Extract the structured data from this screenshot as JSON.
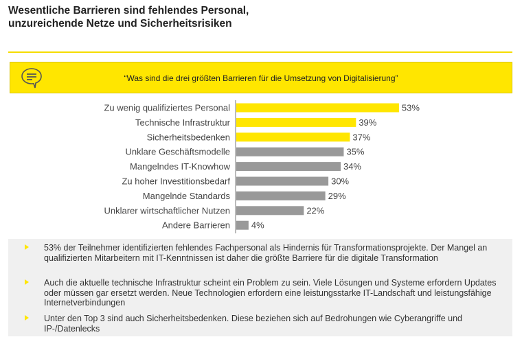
{
  "title_line1": "Wesentliche Barrieren sind fehlendes Personal,",
  "title_line2": "unzureichende Netze und Sicherheitsrisiken",
  "question": "“Was sind die drei größten Barrieren für die Umsetzung von Digitalisierung”",
  "colors": {
    "highlight": "#ffe600",
    "other": "#999999"
  },
  "chart_data": {
    "type": "bar",
    "orientation": "horizontal",
    "categories": [
      "Zu wenig qualifiziertes Personal",
      "Technische Infrastruktur",
      "Sicherheitsbedenken",
      "Unklare Geschäftsmodelle",
      "Mangelndes IT-Knowhow",
      "Zu hoher Investitionsbedarf",
      "Mangelnde Standards",
      "Unklarer wirtschaftlicher Nutzen",
      "Andere Barrieren"
    ],
    "values": [
      53,
      39,
      37,
      35,
      34,
      30,
      29,
      22,
      4
    ],
    "data_labels": [
      "53%",
      "39%",
      "37%",
      "35%",
      "34%",
      "30%",
      "29%",
      "22%",
      "4%"
    ],
    "highlighted": [
      true,
      true,
      true,
      false,
      false,
      false,
      false,
      false,
      false
    ],
    "unit": "%",
    "grid": false
  },
  "notes": [
    "53% der Teilnehmer identifizierten fehlendes Fachpersonal als Hindernis für Transformationsprojekte. Der Mangel an qualifizierten Mitarbeitern mit IT-Kenntnissen ist daher die größte Barriere für die digitale Transformation",
    "Auch die aktuelle technische Infrastruktur scheint ein Problem zu sein. Viele Lösungen und Systeme erfordern Updates oder müssen gar ersetzt werden. Neue Technologien erfordern eine leistungsstarke IT-Landschaft und leistungsfähige Internetverbindungen",
    "Unter den Top 3 sind auch Sicherheitsbedenken. Diese beziehen sich auf Bedrohungen wie Cyberangriffe und IP-/Datenlecks"
  ]
}
